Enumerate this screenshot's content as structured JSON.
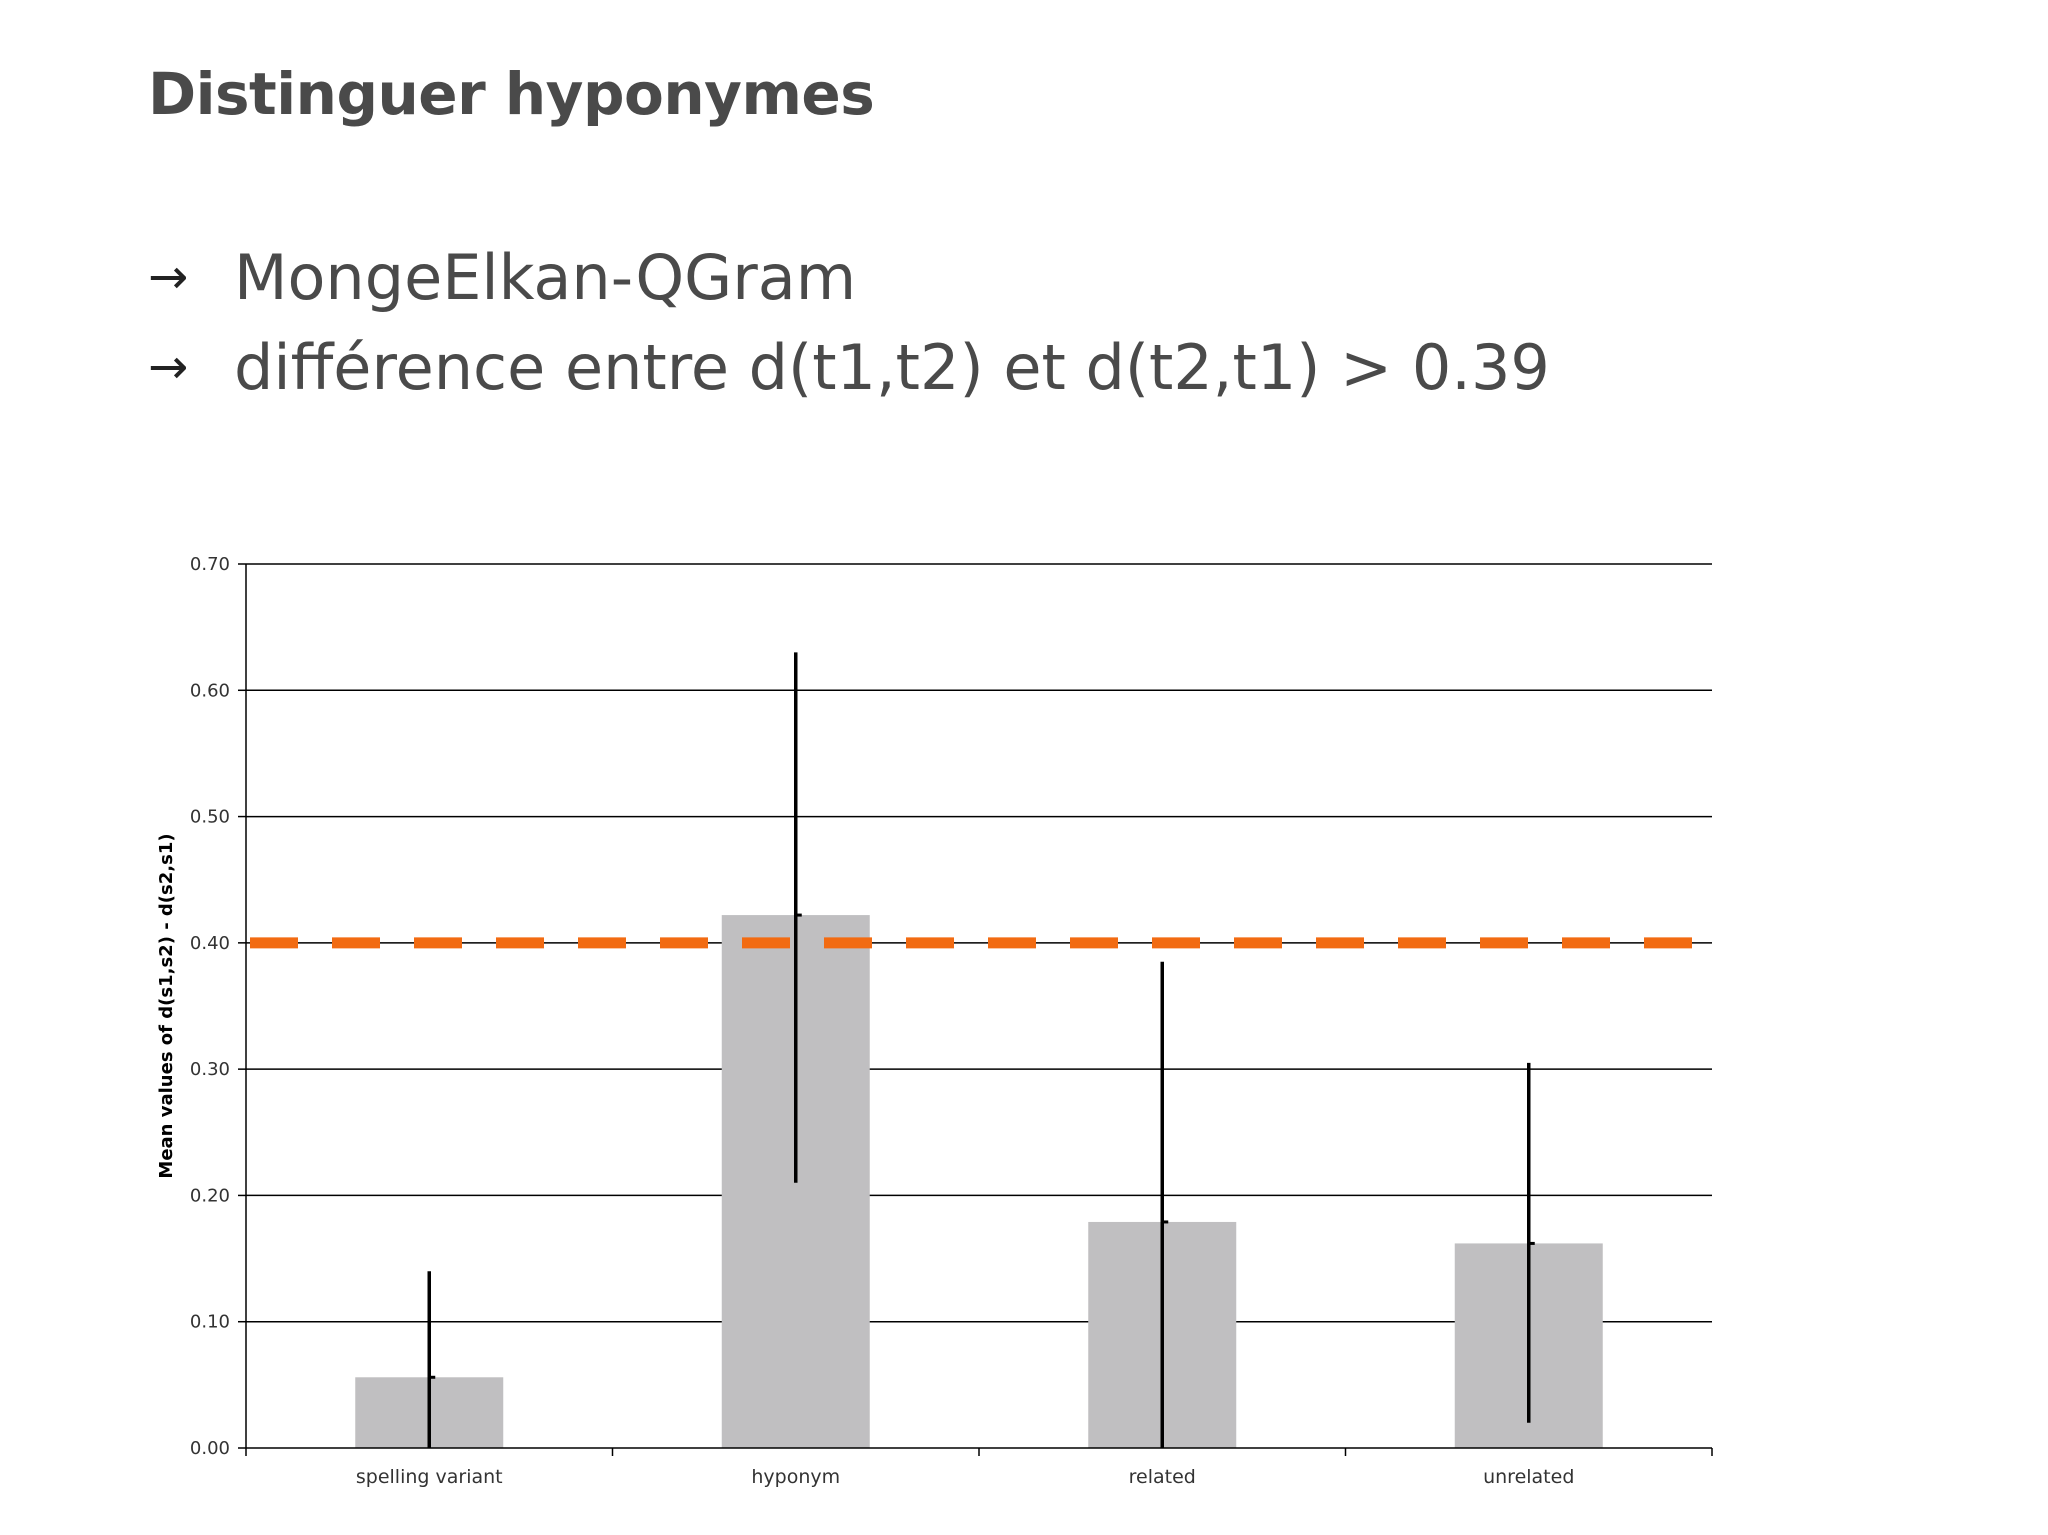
{
  "slide": {
    "title": "Distinguer hyponymes",
    "bullets": [
      {
        "arrow": "→",
        "text": "MongeElkan-QGram"
      },
      {
        "arrow": "→",
        "text": "différence entre d(t1,t2) et d(t2,t1) > 0.39"
      }
    ]
  },
  "chart_data": {
    "type": "bar",
    "title": "",
    "xlabel": "",
    "ylabel": "Mean values of d(s1,s2) - d(s2,s1)",
    "categories": [
      "spelling variant",
      "hyponym",
      "related",
      "unrelated"
    ],
    "values": [
      0.056,
      0.422,
      0.179,
      0.162
    ],
    "error_bars": [
      {
        "low": 0.0,
        "high": 0.14
      },
      {
        "low": 0.21,
        "high": 0.63
      },
      {
        "low": 0.0,
        "high": 0.385
      },
      {
        "low": 0.02,
        "high": 0.305
      }
    ],
    "ylim": [
      0,
      0.7
    ],
    "yticks": [
      "0.00",
      "0.10",
      "0.20",
      "0.30",
      "0.40",
      "0.50",
      "0.60",
      "0.70"
    ],
    "grid": true,
    "legend": "none",
    "threshold": 0.4,
    "colors": {
      "bar": "#c0bfc1",
      "error_bar": "#000000",
      "threshold": "#f26b12",
      "grid": "#000000",
      "tick_text": "#333333"
    }
  }
}
